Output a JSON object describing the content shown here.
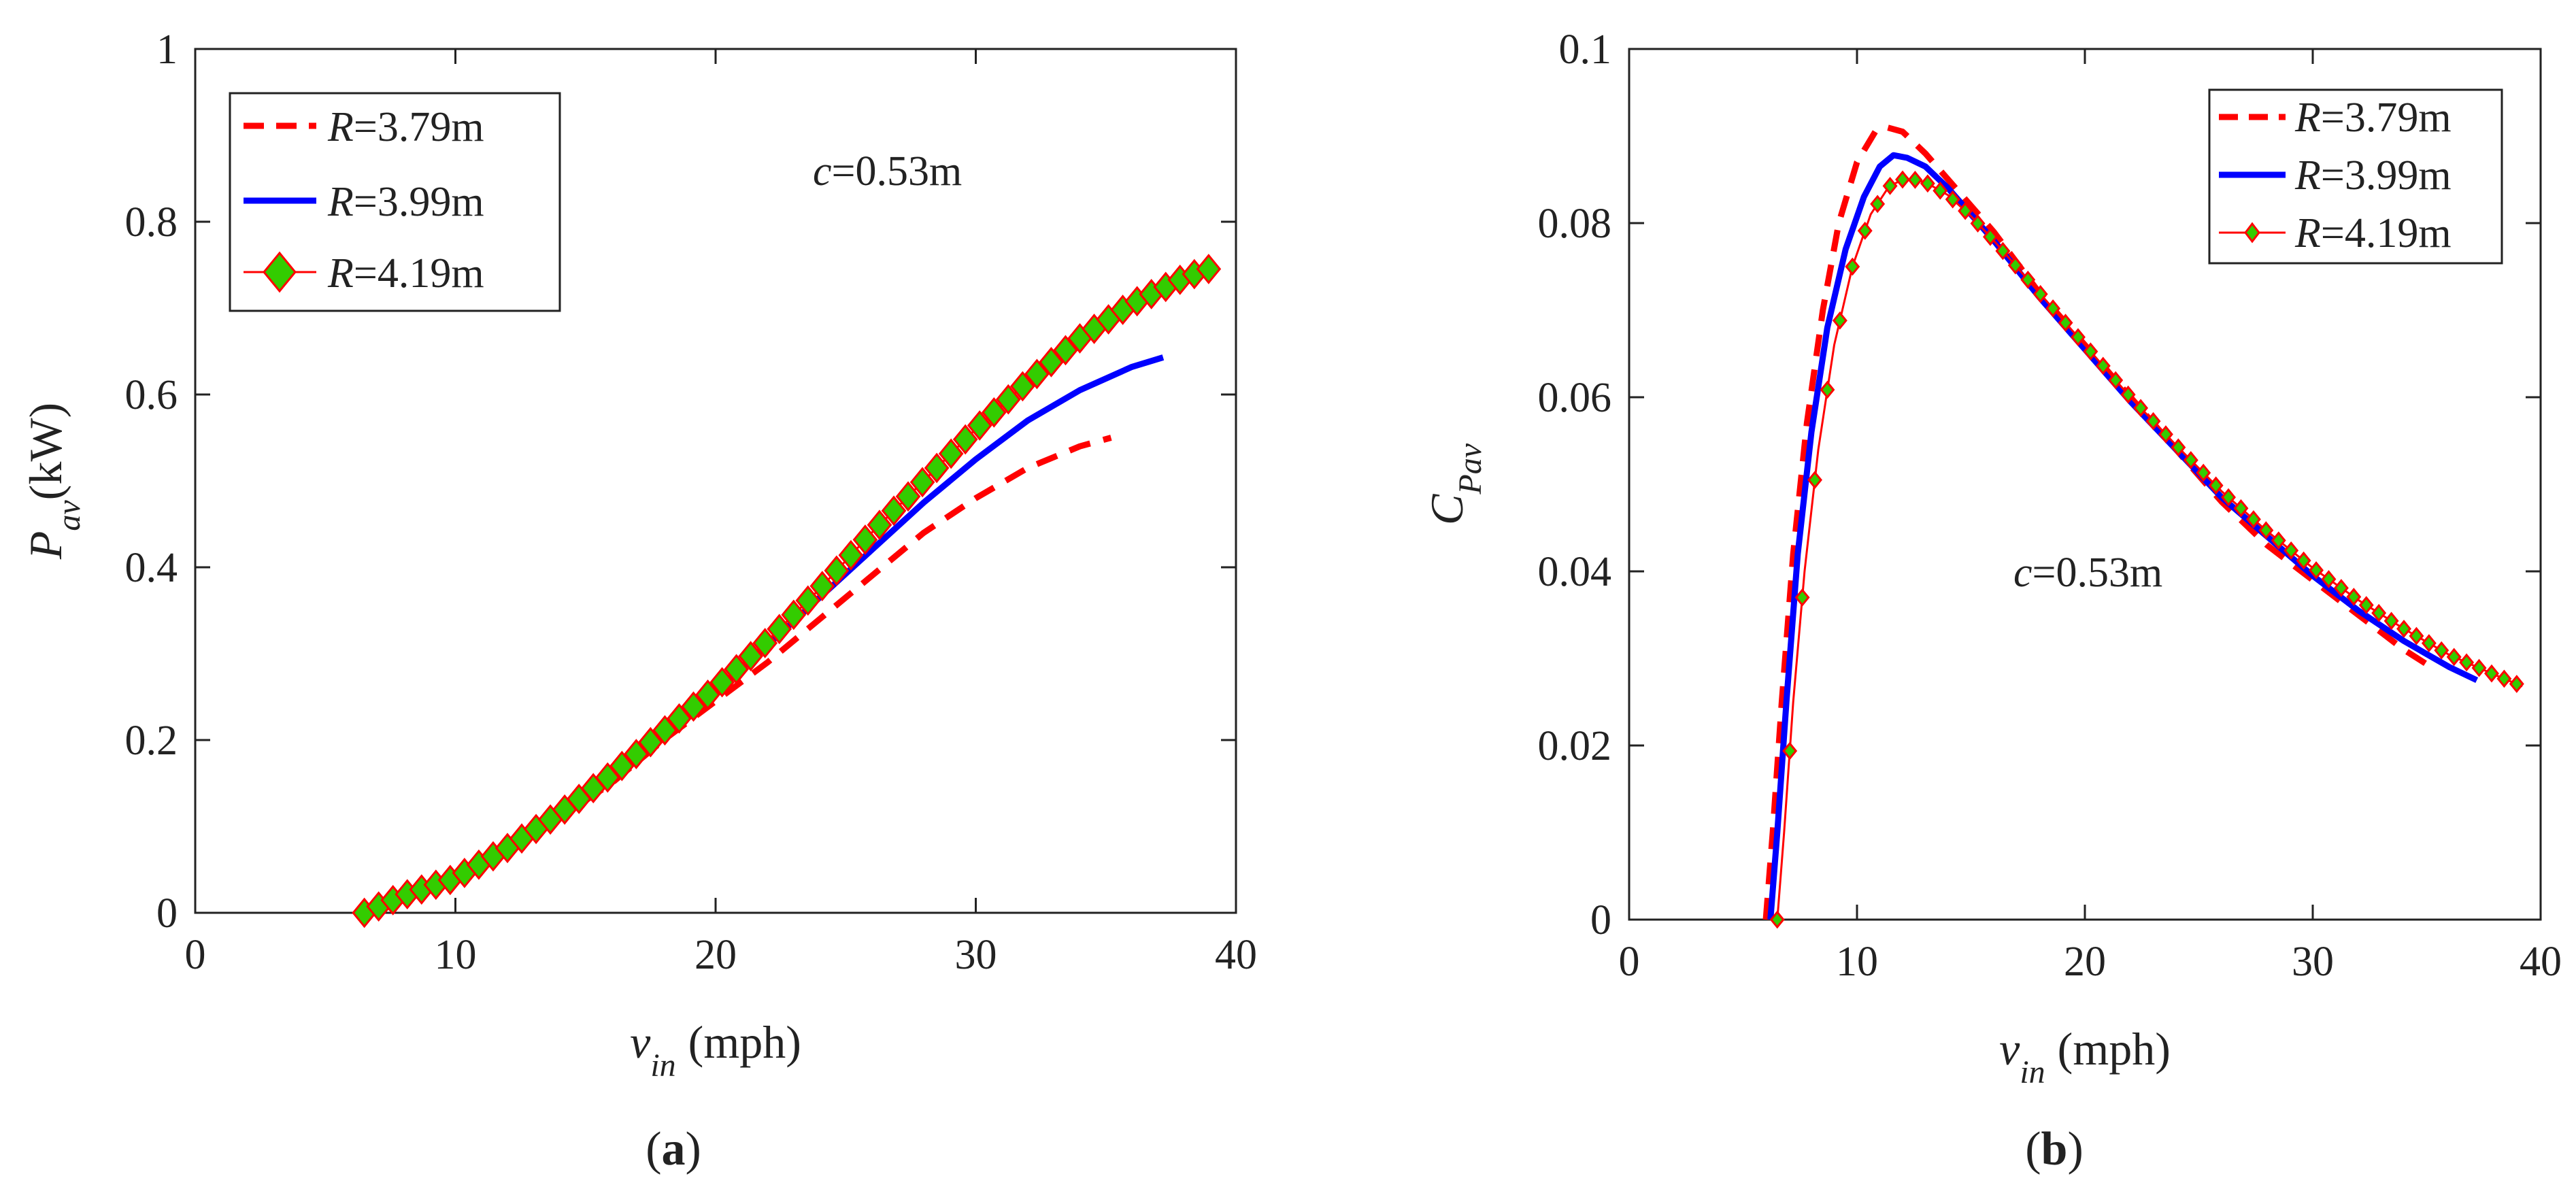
{
  "figure": {
    "panels": [
      "(a)",
      "(b)"
    ]
  },
  "chart_data": [
    {
      "type": "line",
      "panel_label": {
        "open": "(",
        "letter": "a",
        "close": ")"
      },
      "title": "",
      "xlabel": {
        "symbol": "v",
        "sub": "in",
        "unit": "(mph)"
      },
      "ylabel": {
        "symbol": "P",
        "sub": "av",
        "unit": "(kW)"
      },
      "xlim": [
        0,
        40
      ],
      "ylim": [
        0,
        1
      ],
      "xticks": [
        0,
        10,
        20,
        30,
        40
      ],
      "xtick_labels": [
        "0",
        "10",
        "20",
        "30",
        "40"
      ],
      "yticks": [
        0,
        0.2,
        0.4,
        0.6,
        0.8,
        1
      ],
      "ytick_labels": [
        "0",
        "0.2",
        "0.4",
        "0.6",
        "0.8",
        "1"
      ],
      "grid": false,
      "legend_position": "top-left",
      "annotation": {
        "italic": "c",
        "text": "=0.53m"
      },
      "series": [
        {
          "name": "R=3.79m",
          "label_italic": "R",
          "label_rest": "=3.79m",
          "style": "dashed",
          "color": "#ff0000",
          "marker": "none",
          "x": [
            6.5,
            8,
            10,
            12,
            14,
            16,
            18,
            20,
            22,
            24,
            26,
            28,
            30,
            32,
            34,
            35.2
          ],
          "y": [
            0.0,
            0.02,
            0.04,
            0.07,
            0.11,
            0.15,
            0.2,
            0.245,
            0.29,
            0.34,
            0.39,
            0.44,
            0.48,
            0.515,
            0.54,
            0.55
          ]
        },
        {
          "name": "R=3.99m",
          "label_italic": "R",
          "label_rest": "=3.99m",
          "style": "solid",
          "color": "#0000ff",
          "marker": "none",
          "x": [
            6.5,
            8,
            10,
            12,
            14,
            16,
            18,
            20,
            22,
            24,
            26,
            28,
            30,
            32,
            34,
            36,
            37.2
          ],
          "y": [
            0.0,
            0.02,
            0.04,
            0.07,
            0.11,
            0.155,
            0.205,
            0.255,
            0.31,
            0.365,
            0.42,
            0.475,
            0.525,
            0.57,
            0.605,
            0.632,
            0.643
          ]
        },
        {
          "name": "R=4.19m",
          "label_italic": "R",
          "label_rest": "=4.19m",
          "style": "solid",
          "color": "#ff0000",
          "marker": "diamond",
          "marker_fill": "#33cc00",
          "x": [
            6.5,
            8,
            10,
            12,
            14,
            16,
            18,
            20,
            22,
            24,
            26,
            28,
            30,
            32,
            34,
            36,
            38,
            39.2
          ],
          "y": [
            0.0,
            0.02,
            0.04,
            0.075,
            0.115,
            0.16,
            0.21,
            0.26,
            0.315,
            0.375,
            0.44,
            0.5,
            0.56,
            0.615,
            0.665,
            0.705,
            0.735,
            0.748
          ]
        }
      ]
    },
    {
      "type": "line",
      "panel_label": {
        "open": "(",
        "letter": "b",
        "close": ")"
      },
      "title": "",
      "xlabel": {
        "symbol": "v",
        "sub": "in",
        "unit": "(mph)"
      },
      "ylabel": {
        "symbol": "C",
        "sub": "Pav",
        "unit": ""
      },
      "xlim": [
        0,
        40
      ],
      "ylim": [
        0,
        0.1
      ],
      "xticks": [
        0,
        10,
        20,
        30,
        40
      ],
      "xtick_labels": [
        "0",
        "10",
        "20",
        "30",
        "40"
      ],
      "yticks": [
        0,
        0.02,
        0.04,
        0.06,
        0.08,
        0.1
      ],
      "ytick_labels": [
        "0",
        "0.02",
        "0.04",
        "0.06",
        "0.08",
        "0.1"
      ],
      "grid": false,
      "legend_position": "top-right",
      "annotation": {
        "italic": "c",
        "text": "=0.53m"
      },
      "series": [
        {
          "name": "R=3.79m",
          "label_italic": "R",
          "label_rest": "=3.79m",
          "style": "dashed",
          "color": "#ff0000",
          "marker": "none",
          "x": [
            6.0,
            6.3,
            6.7,
            7.2,
            7.8,
            8.5,
            9.2,
            10,
            10.8,
            11.3,
            12,
            13,
            14,
            15,
            16,
            18,
            20,
            22,
            24,
            26,
            28,
            30,
            32,
            34,
            35.2
          ],
          "y": [
            0.0,
            0.01,
            0.025,
            0.042,
            0.057,
            0.07,
            0.08,
            0.087,
            0.0905,
            0.091,
            0.0905,
            0.088,
            0.085,
            0.082,
            0.079,
            0.072,
            0.066,
            0.06,
            0.054,
            0.048,
            0.043,
            0.039,
            0.035,
            0.031,
            0.029
          ]
        },
        {
          "name": "R=3.99m",
          "label_italic": "R",
          "label_rest": "=3.99m",
          "style": "solid",
          "color": "#0000ff",
          "marker": "none",
          "x": [
            6.2,
            6.5,
            6.9,
            7.4,
            8.0,
            8.7,
            9.5,
            10.3,
            11.0,
            11.6,
            12.2,
            13,
            14,
            15,
            16,
            18,
            20,
            22,
            24,
            26,
            28,
            30,
            32,
            34,
            36,
            37.2
          ],
          "y": [
            0.0,
            0.01,
            0.025,
            0.042,
            0.056,
            0.068,
            0.077,
            0.083,
            0.0865,
            0.0878,
            0.0875,
            0.0865,
            0.084,
            0.081,
            0.078,
            0.0715,
            0.0655,
            0.0595,
            0.054,
            0.0485,
            0.044,
            0.0395,
            0.0355,
            0.032,
            0.029,
            0.0275
          ]
        },
        {
          "name": "R=4.19m",
          "label_italic": "R",
          "label_rest": "=4.19m",
          "style": "solid",
          "color": "#ff0000",
          "marker": "diamond",
          "marker_fill": "#33cc00",
          "x": [
            6.5,
            6.8,
            7.2,
            7.7,
            8.3,
            9.0,
            9.8,
            10.6,
            11.4,
            12.0,
            12.5,
            13,
            14,
            15,
            16,
            18,
            20,
            22,
            24,
            26,
            28,
            30,
            32,
            34,
            36,
            38,
            39.2
          ],
          "y": [
            0.0,
            0.01,
            0.025,
            0.04,
            0.054,
            0.066,
            0.075,
            0.081,
            0.0842,
            0.085,
            0.085,
            0.0847,
            0.0832,
            0.0808,
            0.078,
            0.072,
            0.066,
            0.06,
            0.0545,
            0.0492,
            0.0446,
            0.0404,
            0.0367,
            0.0334,
            0.0304,
            0.0281,
            0.0268
          ]
        }
      ]
    }
  ]
}
